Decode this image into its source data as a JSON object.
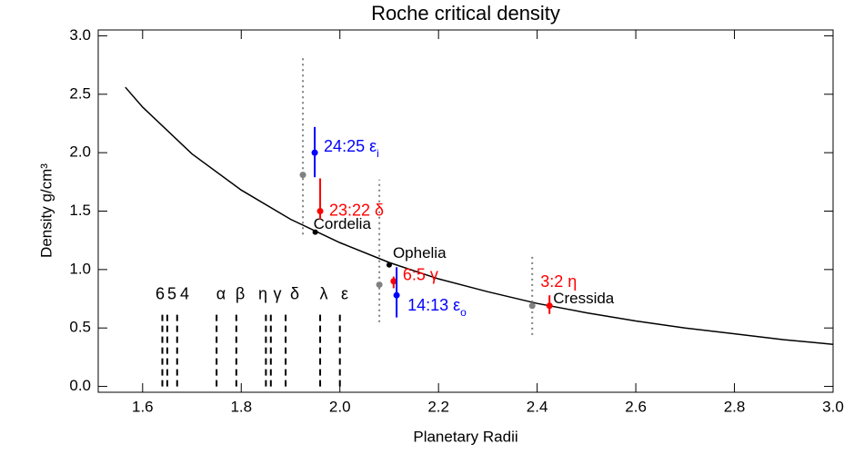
{
  "chart_data": {
    "type": "line",
    "title": "Roche critical density",
    "x_label": "Planetary Radii",
    "y_label": "Density g/cm³",
    "xlim": [
      1.51,
      3.0
    ],
    "ylim": [
      -0.05,
      3.05
    ],
    "xticks": [
      1.6,
      1.8,
      {
        "value": 2,
        "label": "2.0"
      },
      2.2,
      2.4,
      2.6,
      2.8,
      {
        "value": 3,
        "label": "3.0"
      }
    ],
    "yticks": [
      {
        "value": 0,
        "label": "0.0"
      },
      0.5,
      {
        "value": 1,
        "label": "1.0"
      },
      1.5,
      {
        "value": 2,
        "label": "2.0"
      },
      2.5,
      {
        "value": 3,
        "label": "3.0"
      }
    ],
    "series": [
      {
        "color": "#000000",
        "x": [
          1.565,
          1.6,
          1.7,
          1.8,
          1.9,
          2.0,
          2.1,
          2.2,
          2.3,
          2.4,
          2.5,
          2.6,
          2.7,
          2.8,
          2.9,
          3.0
        ],
        "values": [
          2.56,
          2.39,
          1.99,
          1.68,
          1.43,
          1.23,
          1.06,
          0.92,
          0.81,
          0.71,
          0.63,
          0.56,
          0.5,
          0.45,
          0.4,
          0.36
        ]
      }
    ],
    "gray_points": {
      "color": "#808080",
      "x": [
        1.925,
        2.08,
        2.39
      ],
      "values": [
        1.81,
        0.87,
        0.69
      ],
      "ranges": [
        [
          1.3,
          2.83
        ],
        [
          0.55,
          1.77
        ],
        [
          0.44,
          1.11
        ]
      ]
    },
    "resonances": [
      {
        "label": "24:25 ε",
        "sub": "i",
        "color": "#0000ff",
        "x": 1.949,
        "y": 2.0,
        "err_low": 0.21,
        "err_high": 0.22
      },
      {
        "label": "23:22 δ",
        "color": "#ff0000",
        "x": 1.96,
        "y": 1.5,
        "err_low": 0.07,
        "err_high": 0.28
      },
      {
        "label": "6:5 γ",
        "color": "#ff0000",
        "x": 2.109,
        "y": 0.9,
        "err_low": 0.06,
        "err_high": 0.04
      },
      {
        "label": "14:13 ε",
        "sub": "o",
        "color": "#0000ff",
        "x": 2.115,
        "y": 0.78,
        "err_low": 0.19,
        "err_high": 0.24
      },
      {
        "label": "3:2 η",
        "color": "#ff0000",
        "x": 2.425,
        "y": 0.69,
        "err_low": 0.07,
        "err_high": 0.09
      }
    ],
    "moons": [
      {
        "label": "Cordelia",
        "x": 1.95,
        "y": 1.32
      },
      {
        "label": "Ophelia",
        "x": 2.1,
        "y": 1.04
      },
      {
        "label": "Cressida",
        "x": 2.425,
        "y": 0.69
      }
    ],
    "rings": {
      "top": 0.65,
      "labels": [
        "6",
        "5",
        "4",
        "α",
        "β",
        "η",
        "γ",
        "δ",
        "λ",
        "ε"
      ],
      "x": [
        1.64,
        1.65,
        1.67,
        1.75,
        1.79,
        1.85,
        1.86,
        1.89,
        1.96,
        2.0
      ]
    }
  }
}
